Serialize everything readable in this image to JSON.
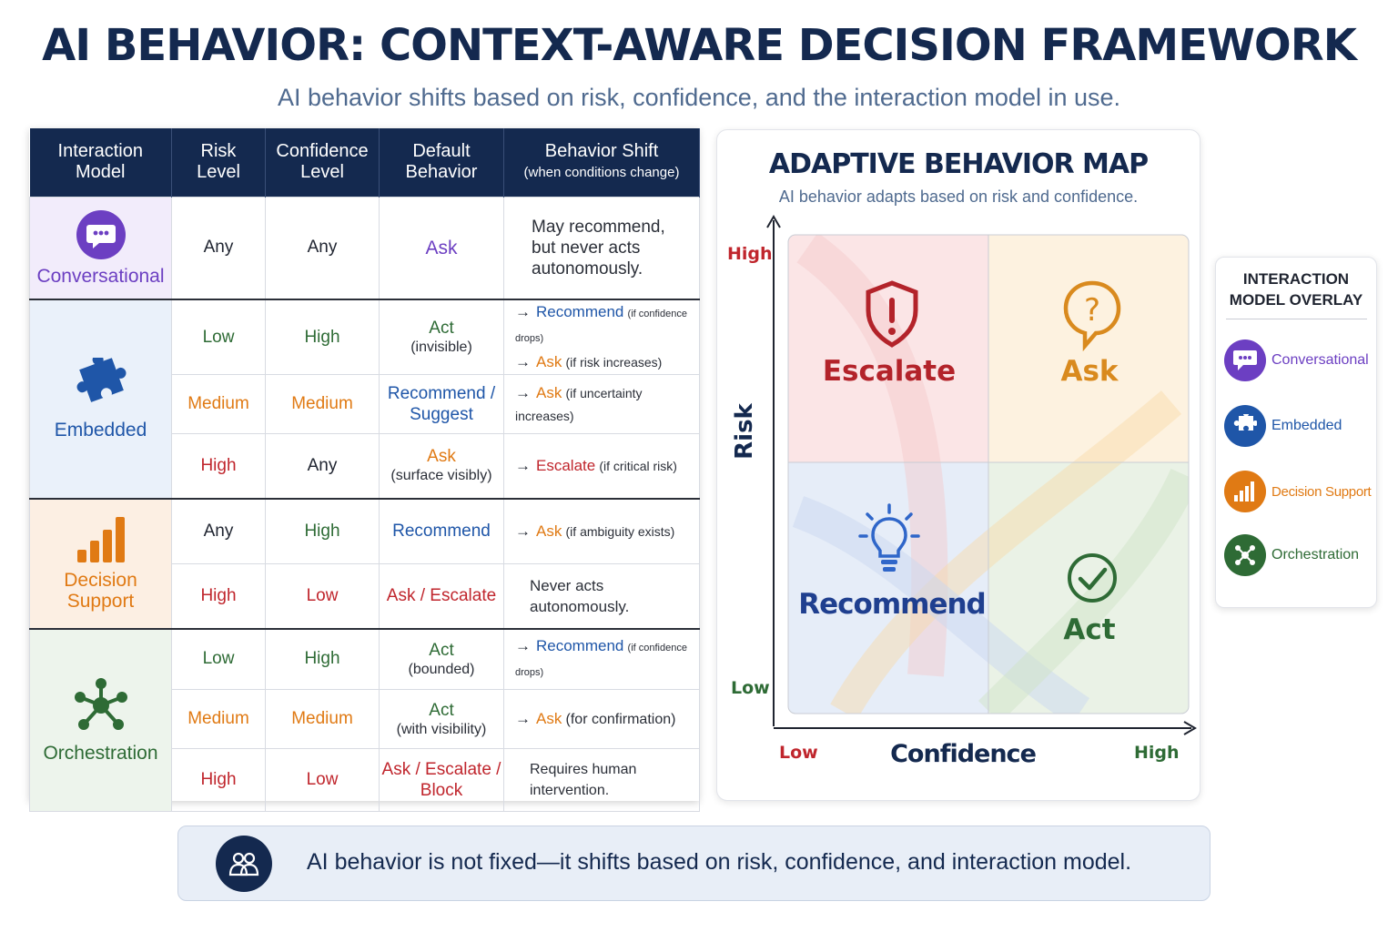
{
  "title": "AI BEHAVIOR: CONTEXT-AWARE DECISION FRAMEWORK",
  "subtitle": "AI behavior shifts based on risk, confidence, and the interaction model in use.",
  "table": {
    "headers": {
      "model": [
        "Interaction",
        "Model"
      ],
      "risk": [
        "Risk",
        "Level"
      ],
      "confidence": [
        "Confidence",
        "Level"
      ],
      "default": [
        "Default",
        "Behavior"
      ],
      "shift": "Behavior Shift",
      "shift_sub": "(when conditions change)"
    },
    "conversational": {
      "name": "Conversational",
      "rows": [
        {
          "risk": "Any",
          "confidence": "Any",
          "behavior": "Ask",
          "shift_lines": [
            "May recommend,",
            "but never acts",
            "autonomously."
          ]
        }
      ]
    },
    "embedded": {
      "name": "Embedded",
      "rows": [
        {
          "risk": "Low",
          "confidence": "High",
          "behavior": "Act",
          "behavior_sub": "(invisible)",
          "shifts": [
            {
              "kw": "Recommend",
              "cond": "(if confidence drops)"
            },
            {
              "kw": "Ask",
              "cond": "(if risk increases)"
            }
          ]
        },
        {
          "risk": "Medium",
          "confidence": "Medium",
          "behavior": "Recommend /",
          "behavior2": "Suggest",
          "shifts": [
            {
              "kw": "Ask",
              "cond": "(if uncertainty increases)"
            }
          ]
        },
        {
          "risk": "High",
          "confidence": "Any",
          "behavior": "Ask",
          "behavior_sub": "(surface visibly)",
          "shifts": [
            {
              "kw": "Escalate",
              "cond": "(if critical risk)"
            }
          ]
        }
      ]
    },
    "decision": {
      "name": [
        "Decision",
        "Support"
      ],
      "rows": [
        {
          "risk": "Any",
          "confidence": "High",
          "behavior": "Recommend",
          "shifts": [
            {
              "kw": "Ask",
              "cond": "(if ambiguity exists)"
            }
          ]
        },
        {
          "risk": "High",
          "confidence": "Low",
          "behavior": "Ask / Escalate",
          "shift_lines": [
            "Never acts",
            "autonomously."
          ]
        }
      ]
    },
    "orchestration": {
      "name": "Orchestration",
      "rows": [
        {
          "risk": "Low",
          "confidence": "High",
          "behavior": "Act",
          "behavior_sub": "(bounded)",
          "shifts": [
            {
              "kw": "Recommend",
              "cond": "(if confidence drops)"
            }
          ]
        },
        {
          "risk": "Medium",
          "confidence": "Medium",
          "behavior": "Act",
          "behavior_sub": "(with visibility)",
          "shifts": [
            {
              "kw": "Ask",
              "cond": "(for confirmation)"
            }
          ]
        },
        {
          "risk": "High",
          "confidence": "Low",
          "behavior": "Ask / Escalate /",
          "behavior2": "Block",
          "shift_lines": [
            "Requires human",
            "intervention."
          ]
        }
      ]
    }
  },
  "map": {
    "title": "ADAPTIVE BEHAVIOR MAP",
    "subtitle": "AI behavior adapts based on risk and confidence.",
    "y_axis": "Risk",
    "x_axis": "Confidence",
    "y_high": "High",
    "y_low": "Low",
    "x_low": "Low",
    "x_high": "High",
    "quadrants": {
      "top_left": {
        "label": "Escalate",
        "icon": "shield-alert-icon",
        "color": "#b3232a"
      },
      "top_right": {
        "label": "Ask",
        "icon": "question-bubble-icon",
        "color": "#d98a1e"
      },
      "bottom_left": {
        "label": "Recommend",
        "icon": "lightbulb-icon",
        "color": "#1f3f8f"
      },
      "bottom_right": {
        "label": "Act",
        "icon": "check-circle-icon",
        "color": "#2e6b35"
      }
    }
  },
  "overlay": {
    "title": [
      "INTERACTION",
      "MODEL OVERLAY"
    ],
    "items": [
      {
        "label": "Conversational",
        "icon": "chat-bubble-icon",
        "color": "#6c3fc2"
      },
      {
        "label": "Embedded",
        "icon": "puzzle-icon",
        "color": "#1f56a8"
      },
      {
        "label": "Decision Support",
        "icon": "bar-chart-icon",
        "color": "#e07a14"
      },
      {
        "label": "Orchestration",
        "icon": "network-icon",
        "color": "#2e6b35"
      }
    ]
  },
  "banner": {
    "text": "AI behavior is not fixed—it shifts based on risk, confidence, and interaction model.",
    "icon": "people-icon"
  }
}
